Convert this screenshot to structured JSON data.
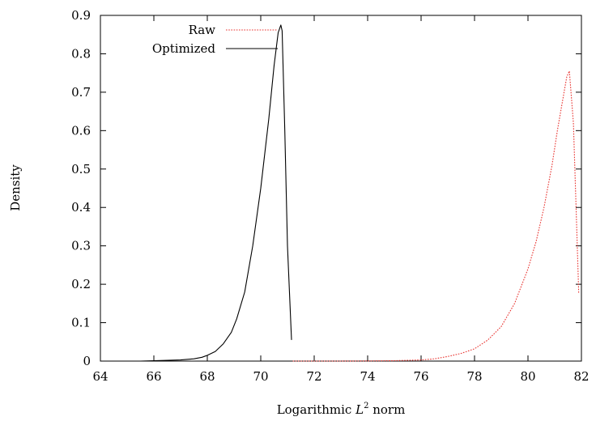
{
  "chart_data": {
    "type": "line",
    "title": "",
    "xlabel": "Logarithmic",
    "xlabel_symbol": "L",
    "xlabel_superscript": "2",
    "xlabel_suffix": "norm",
    "ylabel": "Density",
    "xlim": [
      64,
      82
    ],
    "ylim": [
      0,
      0.9
    ],
    "xticks": [
      64,
      66,
      68,
      70,
      72,
      74,
      76,
      78,
      80,
      82
    ],
    "yticks": [
      0,
      0.1,
      0.2,
      0.3,
      0.4,
      0.5,
      0.6,
      0.7,
      0.8,
      0.9
    ],
    "xtick_labels": [
      "64",
      "66",
      "68",
      "70",
      "72",
      "74",
      "76",
      "78",
      "80",
      "82"
    ],
    "ytick_labels": [
      "0",
      "0.1",
      "0.2",
      "0.3",
      "0.4",
      "0.5",
      "0.6",
      "0.7",
      "0.8",
      "0.9"
    ],
    "grid": false,
    "legend_position": "top-left",
    "series": [
      {
        "name": "Raw",
        "color": "#e8322e",
        "style": "dotted",
        "x": [
          71.2,
          72,
          73,
          74,
          75,
          76,
          76.5,
          77,
          77.5,
          78,
          78.5,
          79,
          79.5,
          80,
          80.3,
          80.6,
          80.9,
          81.1,
          81.3,
          81.45,
          81.55,
          81.7,
          81.8,
          81.9
        ],
        "y": [
          0.0,
          0.0,
          0.0,
          0.0005,
          0.001,
          0.003,
          0.006,
          0.012,
          0.02,
          0.032,
          0.055,
          0.09,
          0.15,
          0.24,
          0.31,
          0.4,
          0.51,
          0.6,
          0.68,
          0.74,
          0.755,
          0.62,
          0.4,
          0.175
        ]
      },
      {
        "name": "Optimized",
        "color": "#000000",
        "style": "solid",
        "x": [
          64.5,
          65.5,
          66.5,
          67,
          67.5,
          67.8,
          68,
          68.3,
          68.6,
          68.9,
          69.1,
          69.4,
          69.7,
          70.0,
          70.3,
          70.5,
          70.65,
          70.75,
          70.8,
          70.9,
          71.0,
          71.15
        ],
        "y": [
          0.0,
          0.0,
          0.002,
          0.003,
          0.006,
          0.01,
          0.015,
          0.025,
          0.045,
          0.075,
          0.11,
          0.18,
          0.3,
          0.45,
          0.63,
          0.77,
          0.855,
          0.875,
          0.86,
          0.6,
          0.3,
          0.055
        ]
      }
    ]
  }
}
